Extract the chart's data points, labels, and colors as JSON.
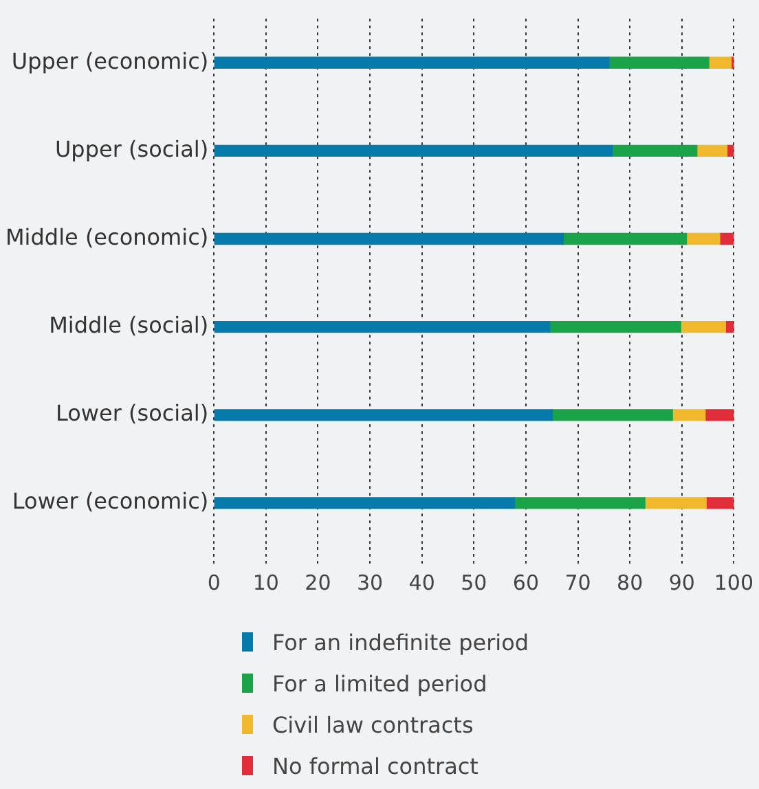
{
  "chart_data": {
    "type": "bar",
    "orientation": "horizontal",
    "stacked": true,
    "categories": [
      "Upper (economic)",
      "Upper (social)",
      "Middle (economic)",
      "Middle (social)",
      "Lower (social)",
      "Lower (economic)"
    ],
    "series": [
      {
        "name": "For an indefinite period",
        "color": "#067bab",
        "values": [
          76,
          76.6,
          67.2,
          64.6,
          65.1,
          57.8
        ]
      },
      {
        "name": "For a limited period",
        "color": "#1ba34a",
        "values": [
          19.2,
          16.3,
          23.7,
          25.2,
          23.1,
          25.1
        ]
      },
      {
        "name": "Civil law contracts",
        "color": "#f0b82d",
        "values": [
          4.3,
          5.8,
          6.4,
          8.6,
          6.3,
          11.8
        ]
      },
      {
        "name": "No formal contract",
        "color": "#e12d39",
        "values": [
          0.5,
          1.3,
          2.7,
          1.6,
          5.5,
          5.3
        ]
      }
    ],
    "xlim": [
      0,
      100
    ],
    "xticks": [
      0,
      10,
      20,
      30,
      40,
      50,
      60,
      70,
      80,
      90,
      100
    ],
    "grid": "x",
    "legend": "bottom"
  }
}
